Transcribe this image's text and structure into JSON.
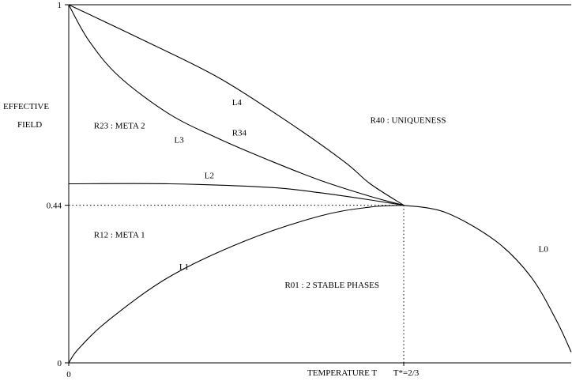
{
  "chart_data": {
    "type": "line",
    "title": "",
    "xlabel": "TEMPERATURE T",
    "ylabel_lines": [
      "EFFECTIVE",
      "FIELD"
    ],
    "xlim": [
      0,
      1
    ],
    "ylim": [
      0,
      1
    ],
    "grid": false,
    "x_ticks": [
      {
        "value": 0,
        "label": "0"
      }
    ],
    "y_ticks": [
      {
        "value": 0,
        "label": "0"
      },
      {
        "value": 0.44,
        "label": "0.44"
      },
      {
        "value": 1,
        "label": "1"
      }
    ],
    "critical_point": {
      "x": 0.6667,
      "y": 0.44,
      "label": "T*=2/3"
    },
    "series": [
      {
        "name": "L0",
        "x": [
          0.6667,
          0.75,
          0.85,
          0.92,
          0.97,
          1.0
        ],
        "y": [
          0.44,
          0.42,
          0.34,
          0.24,
          0.12,
          0.03
        ]
      },
      {
        "name": "L1",
        "x": [
          0.0,
          0.02,
          0.08,
          0.2,
          0.35,
          0.5,
          0.6,
          0.6667
        ],
        "y": [
          0.0,
          0.04,
          0.12,
          0.24,
          0.34,
          0.41,
          0.435,
          0.44
        ]
      },
      {
        "name": "L2",
        "x": [
          0.0,
          0.2,
          0.4,
          0.5,
          0.6,
          0.6667
        ],
        "y": [
          0.5,
          0.5,
          0.49,
          0.475,
          0.455,
          0.44
        ]
      },
      {
        "name": "L3",
        "x": [
          0.0,
          0.04,
          0.1,
          0.2,
          0.3,
          0.4,
          0.5,
          0.6,
          0.6667
        ],
        "y": [
          1.0,
          0.9,
          0.8,
          0.695,
          0.625,
          0.565,
          0.51,
          0.465,
          0.44
        ]
      },
      {
        "name": "L4",
        "x": [
          0.0,
          0.15,
          0.3,
          0.45,
          0.55,
          0.6,
          0.6667
        ],
        "y": [
          1.0,
          0.9,
          0.795,
          0.66,
          0.56,
          0.5,
          0.44
        ]
      }
    ],
    "series_labels": [
      {
        "text": "L0",
        "x": 0.935,
        "y": 0.31
      },
      {
        "text": "L1",
        "x": 0.22,
        "y": 0.26
      },
      {
        "text": "L2",
        "x": 0.27,
        "y": 0.515
      },
      {
        "text": "L3",
        "x": 0.21,
        "y": 0.615
      },
      {
        "text": "L4",
        "x": 0.325,
        "y": 0.72
      },
      {
        "text": "R34",
        "x": 0.325,
        "y": 0.635
      }
    ],
    "annotations": [
      {
        "text": "R23 : META 2",
        "x": 0.05,
        "y": 0.655
      },
      {
        "text": "R40 : UNIQUENESS",
        "x": 0.6,
        "y": 0.67
      },
      {
        "text": "R12 : META 1",
        "x": 0.05,
        "y": 0.35
      },
      {
        "text": "R01 : 2 STABLE PHASES",
        "x": 0.43,
        "y": 0.21
      }
    ]
  }
}
